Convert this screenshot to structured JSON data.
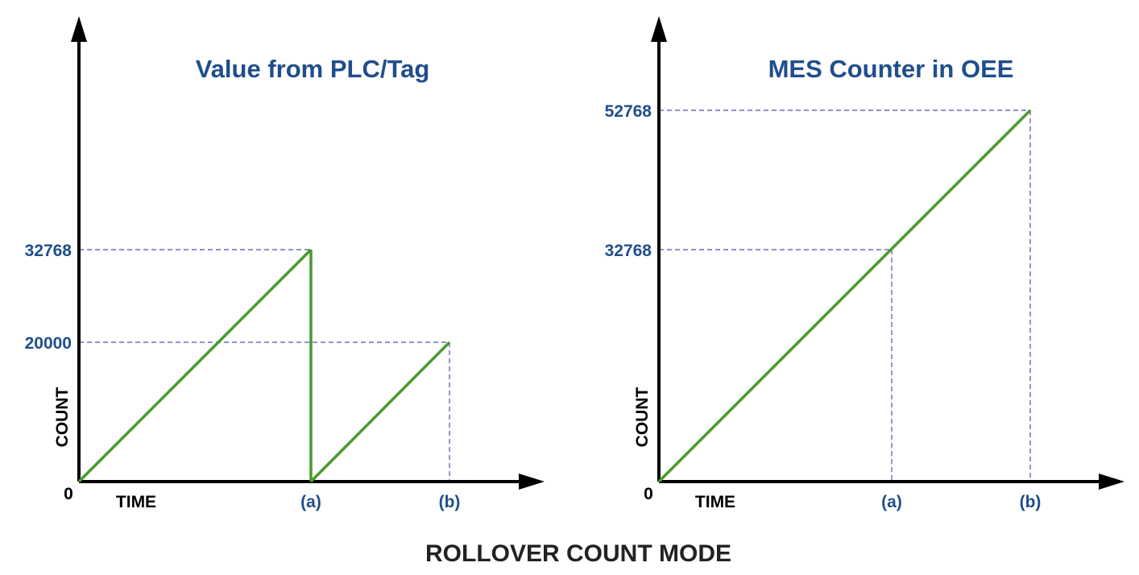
{
  "caption": "ROLLOVER COUNT MODE",
  "colors": {
    "title": "#1f4e8c",
    "tick": "#1f4e8c",
    "series": "#4a9a2e",
    "guide": "#6a6ac8",
    "axis": "#000000"
  },
  "chart_data": [
    {
      "type": "line",
      "title": "Value from PLC/Tag",
      "xlabel": "TIME",
      "ylabel": "COUNT",
      "origin_label": "0",
      "x_marks": [
        "(a)",
        "(b)"
      ],
      "y_marks": [
        "32768",
        "20000"
      ],
      "series": [
        {
          "x": [
            "0",
            "(a)",
            "(a)",
            "(b)"
          ],
          "y": [
            0,
            32768,
            0,
            20000
          ]
        }
      ]
    },
    {
      "type": "line",
      "title": "MES Counter in OEE",
      "xlabel": "TIME",
      "ylabel": "COUNT",
      "origin_label": "0",
      "x_marks": [
        "(a)",
        "(b)"
      ],
      "y_marks": [
        "52768",
        "32768"
      ],
      "series": [
        {
          "x": [
            "0",
            "(a)",
            "(b)"
          ],
          "y": [
            0,
            32768,
            52768
          ]
        }
      ]
    }
  ]
}
